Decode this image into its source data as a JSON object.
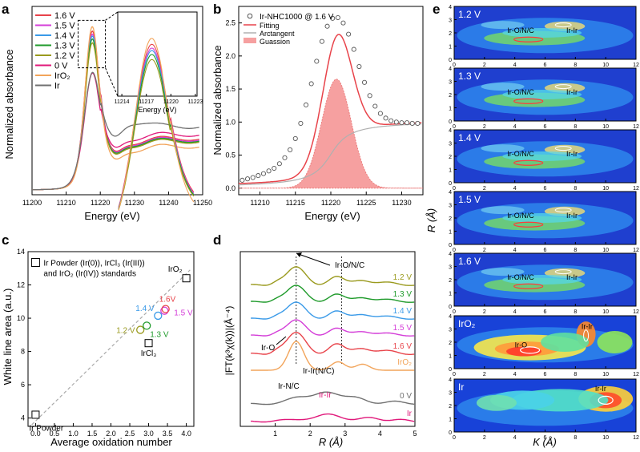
{
  "chart_data": [
    {
      "panel": "a",
      "type": "line",
      "xlabel": "Energy (eV)",
      "ylabel": "Normalized absorbance",
      "xlim": [
        11200,
        11250
      ],
      "ylim": [
        0,
        1.9
      ],
      "xticks": [
        11200,
        11210,
        11220,
        11230,
        11240,
        11250
      ],
      "legend": [
        "1.6 V",
        "1.5 V",
        "1.4 V",
        "1.3 V",
        "1.2 V",
        "0 V",
        "IrO₂",
        "Ir"
      ],
      "series": [
        {
          "name": "1.6 V",
          "color": "#e8434a",
          "peak": 1.62,
          "post": 0.48
        },
        {
          "name": "1.5 V",
          "color": "#d43ed8",
          "peak": 1.59,
          "post": 0.47
        },
        {
          "name": "1.4 V",
          "color": "#3a9ae8",
          "peak": 1.57,
          "post": 0.46
        },
        {
          "name": "1.3 V",
          "color": "#1e9a2a",
          "peak": 1.54,
          "post": 0.46
        },
        {
          "name": "1.2 V",
          "color": "#9a9a1e",
          "peak": 1.5,
          "post": 0.45
        },
        {
          "name": "0 V",
          "color": "#e0187a",
          "peak": 1.2,
          "post": 0.52
        },
        {
          "name": "IrO₂",
          "color": "#f2a45a",
          "peak": 1.66,
          "post": 0.4
        },
        {
          "name": "Ir",
          "color": "#707070",
          "peak": 1.21,
          "post": 0.6
        }
      ],
      "inset": {
        "xlabel": "Energy (eV)",
        "xticks": [
          11214,
          11217,
          11220,
          11223
        ]
      }
    },
    {
      "panel": "b",
      "type": "line",
      "xlabel": "Energy (eV)",
      "ylabel": "Normalized absorbance",
      "xlim": [
        11207,
        11233
      ],
      "ylim": [
        -0.1,
        2.75
      ],
      "xticks": [
        11210,
        11215,
        11220,
        11225,
        11230
      ],
      "yticks": [
        0.0,
        0.5,
        1.0,
        1.5,
        2.0,
        2.5
      ],
      "legend": [
        "Ir-NHC1000 @ 1.6 V",
        "Fitting",
        "Arctangent",
        "Guassion"
      ],
      "gauss": {
        "center": 11220.8,
        "height": 1.65,
        "sigma": 2.1
      },
      "arctan": {
        "center": 11220.0,
        "step": 1.02,
        "width": 2.0
      },
      "data_points": [
        0.12,
        0.14,
        0.16,
        0.19,
        0.22,
        0.26,
        0.3,
        0.37,
        0.46,
        0.58,
        0.75,
        0.98,
        1.26,
        1.58,
        1.92,
        2.22,
        2.45,
        2.57,
        2.58,
        2.5,
        2.33,
        2.1,
        1.84,
        1.6,
        1.4,
        1.24,
        1.13,
        1.06,
        1.02,
        1.0,
        0.99,
        0.99,
        0.98,
        0.98
      ]
    },
    {
      "panel": "c",
      "type": "scatter",
      "xlabel": "Average oxidation number",
      "ylabel": "White line area (a.u.)",
      "xlim": [
        -0.2,
        4.2
      ],
      "ylim": [
        3.5,
        14
      ],
      "xticks": [
        0.0,
        0.5,
        1.0,
        1.5,
        2.0,
        2.5,
        3.0,
        3.5,
        4.0
      ],
      "yticks": [
        4,
        6,
        8,
        10,
        12,
        14
      ],
      "annotation": "Ir Powder (Ir(0)), IrCl₃ (Ir(III)) and IrO₂ (Ir(IV)) standards",
      "fit_line": [
        [
          -0.1,
          3.6
        ],
        [
          4.1,
          12.9
        ]
      ],
      "standards": [
        {
          "label": "Ir Powder",
          "x": 0.0,
          "y": 4.2
        },
        {
          "label": "IrCl₃",
          "x": 3.0,
          "y": 8.5
        },
        {
          "label": "IrO₂",
          "x": 4.0,
          "y": 12.4
        }
      ],
      "samples": [
        {
          "label": "1.2 V",
          "x": 2.78,
          "y": 9.3,
          "color": "#9a9a1e"
        },
        {
          "label": "1.3 V",
          "x": 2.95,
          "y": 9.55,
          "color": "#1e9a2a"
        },
        {
          "label": "1.4 V",
          "x": 3.25,
          "y": 10.15,
          "color": "#3a9ae8"
        },
        {
          "label": "1.5 V",
          "x": 3.42,
          "y": 10.45,
          "color": "#d43ed8"
        },
        {
          "label": "1.6V",
          "x": 3.45,
          "y": 10.55,
          "color": "#e8434a"
        }
      ]
    },
    {
      "panel": "d",
      "type": "line",
      "xlabel": "R (Å)",
      "ylabel": "|FT(k³χ(k))|(Å⁻⁴)",
      "xlim": [
        0,
        5
      ],
      "xticks": [
        1,
        2,
        3,
        4,
        5
      ],
      "annotations": [
        "Ir-O/N/C",
        "Ir-O",
        "Ir-Ir(N/C)",
        "Ir-N/C",
        "Ir-Ir"
      ],
      "vlines": [
        1.6,
        2.9
      ],
      "series": [
        {
          "name": "1.2 V",
          "color": "#9a9a1e"
        },
        {
          "name": "1.3 V",
          "color": "#1e9a2a"
        },
        {
          "name": "1.4 V",
          "color": "#3a9ae8"
        },
        {
          "name": "1.5 V",
          "color": "#d43ed8"
        },
        {
          "name": "1.6 V",
          "color": "#e8434a"
        },
        {
          "name": "IrO₂",
          "color": "#f2a45a"
        },
        {
          "name": "0 V",
          "color": "#707070"
        },
        {
          "name": "Ir",
          "color": "#e0187a"
        }
      ]
    },
    {
      "panel": "e",
      "type": "heatmap",
      "xlabel": "K (Å)",
      "ylabel": "R (Å)",
      "xlim": [
        0,
        12
      ],
      "ylim": [
        0,
        4
      ],
      "xticks": [
        0,
        2,
        4,
        6,
        8,
        10,
        12
      ],
      "yticks": [
        0,
        1,
        2,
        3,
        4
      ],
      "panels": [
        {
          "name": "1.2 V",
          "labels": [
            "Ir-O/N/C",
            "Ir-Ir"
          ],
          "intensity": 0.35
        },
        {
          "name": "1.3 V",
          "labels": [
            "Ir-O/N/C",
            "Ir-Ir"
          ],
          "intensity": 0.4
        },
        {
          "name": "1.4 V",
          "labels": [
            "Ir-O/N/C",
            "Ir-Ir"
          ],
          "intensity": 0.45
        },
        {
          "name": "1.5 V",
          "labels": [
            "Ir-O/N/C",
            "Ir-Ir"
          ],
          "intensity": 0.45
        },
        {
          "name": "1.6 V",
          "labels": [
            "Ir-O/N/C",
            "Ir-Ir"
          ],
          "intensity": 0.5
        },
        {
          "name": "IrO₂",
          "labels": [
            "Ir-O",
            "Ir-Ir"
          ],
          "intensity": 0.9
        },
        {
          "name": "Ir",
          "labels": [
            "Ir-Ir"
          ],
          "intensity": 1.0
        }
      ]
    }
  ],
  "panel_letters": [
    "a",
    "b",
    "c",
    "d",
    "e"
  ],
  "axis_labels": {
    "a_x": "Energy (eV)",
    "a_y": "Normalized absorbance",
    "b_x": "Energy (eV)",
    "b_y": "Normalized absorbance",
    "c_x": "Average oxidation number",
    "c_y": "White line area (a.u.)",
    "d_x": "R (Å)",
    "d_y": "|FT(k³χ(k))|(Å⁻⁴)",
    "e_x": "K (Å)",
    "e_y": "R (Å)"
  }
}
